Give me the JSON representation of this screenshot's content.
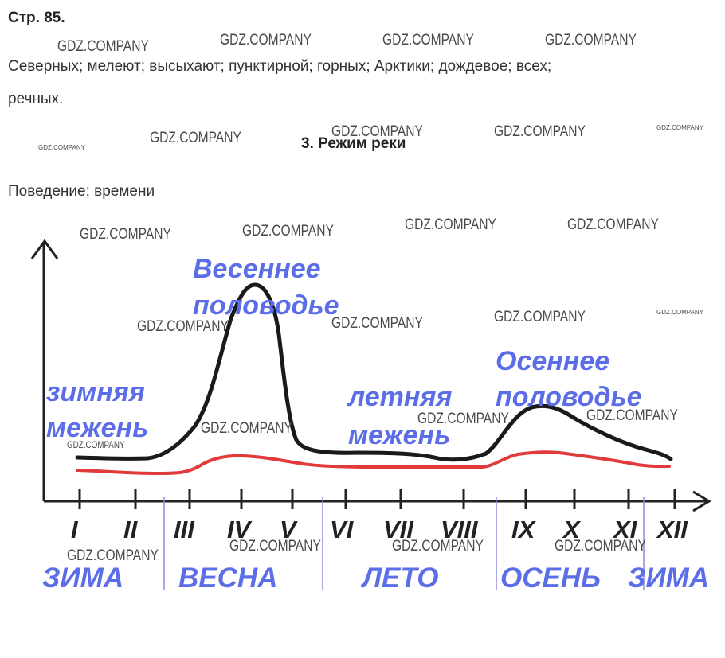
{
  "header": {
    "page_label": "Стр. 85."
  },
  "answers": {
    "line1": "Северных; мелеют; высыхают; пунктирной; горных; Арктики; дождевое;  всех;",
    "line2": "речных.",
    "section_title": "3. Режим реки",
    "line3": "Поведение; времени"
  },
  "watermark": "GDZ.COMPANY",
  "diagram": {
    "labels": {
      "spring_flood_1": "Весеннее",
      "spring_flood_2": "половодье",
      "winter_low_1": "зимняя",
      "winter_low_2": "межень",
      "summer_low_1": "летняя",
      "summer_low_2": "межень",
      "autumn_flood_1": "Осеннее",
      "autumn_flood_2": "половодье"
    },
    "months": [
      "I",
      "II",
      "III",
      "IV",
      "V",
      "VI",
      "VII",
      "VIII",
      "IX",
      "X",
      "XI",
      "XII"
    ],
    "seasons": [
      "ЗИМА",
      "ВЕСНА",
      "ЛЕТО",
      "ОСЕНЬ",
      "ЗИМА"
    ],
    "colors": {
      "axis": "#222222",
      "high_water_curve": "#1a1a1a",
      "low_water_curve": "#e03a3a",
      "handwriting": "#5b6ee8",
      "season_divider": "#8a8ad8"
    }
  }
}
